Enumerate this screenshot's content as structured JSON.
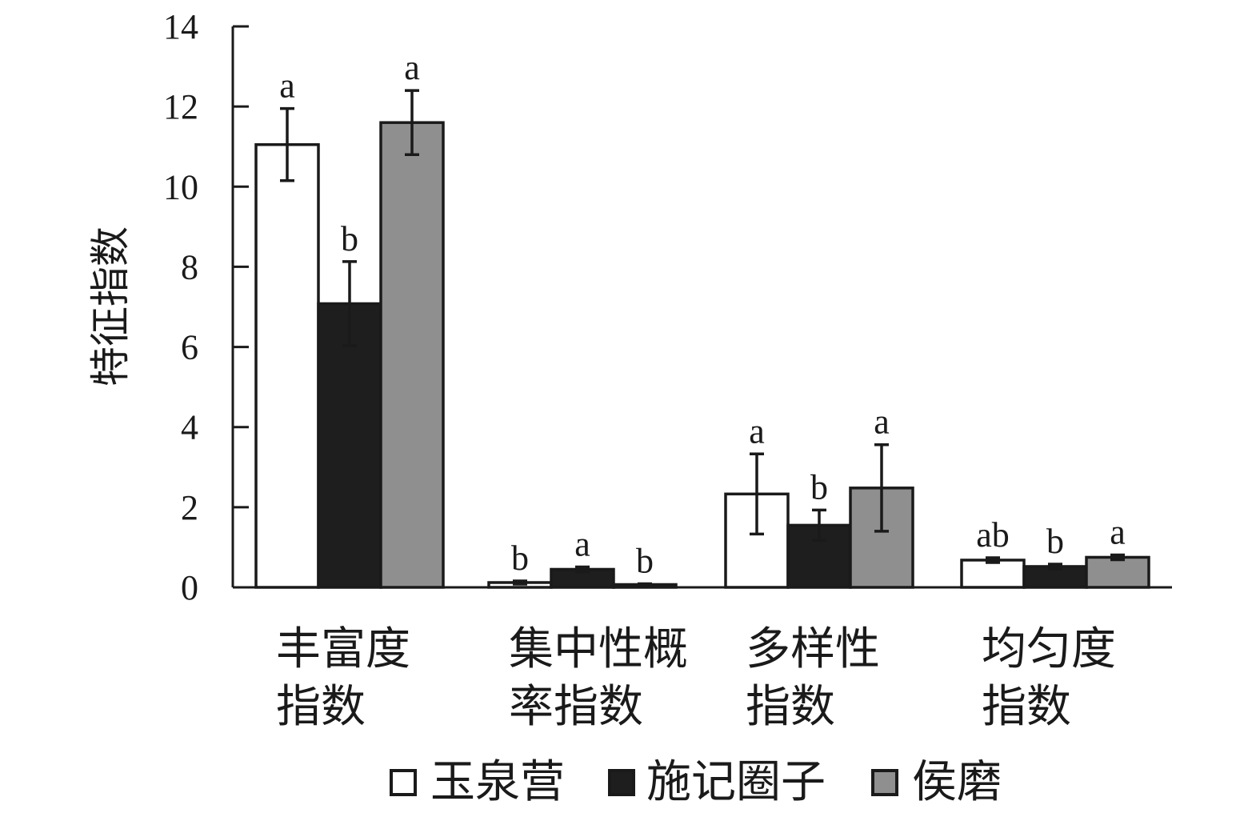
{
  "chart_data": {
    "type": "bar",
    "ylabel": "特征指数",
    "xlabel": "",
    "ylim": [
      0,
      14
    ],
    "yticks": [
      0,
      2,
      4,
      6,
      8,
      10,
      12,
      14
    ],
    "grid": false,
    "legend_position": "bottom",
    "categories": [
      [
        "丰富度",
        "指数"
      ],
      [
        "集中性概",
        "率指数"
      ],
      [
        "多样性",
        "指数"
      ],
      [
        "均匀度",
        "指数"
      ]
    ],
    "series": [
      {
        "name": "玉泉营",
        "color": "#ffffff",
        "values": [
          11.05,
          0.12,
          2.33,
          0.68
        ],
        "errors": [
          0.9,
          0.04,
          1.0,
          0.06
        ],
        "letters": [
          "a",
          "b",
          "a",
          "ab"
        ]
      },
      {
        "name": "施记圈子",
        "color": "#1e1e1e",
        "values": [
          7.08,
          0.45,
          1.55,
          0.52
        ],
        "errors": [
          1.05,
          0.06,
          0.38,
          0.06
        ],
        "letters": [
          "b",
          "a",
          "b",
          "b"
        ]
      },
      {
        "name": "侯磨",
        "color": "#8f8f8f",
        "values": [
          11.6,
          0.07,
          2.48,
          0.75
        ],
        "errors": [
          0.8,
          0.02,
          1.08,
          0.06
        ],
        "letters": [
          "a",
          "b",
          "a",
          "a"
        ]
      }
    ]
  }
}
